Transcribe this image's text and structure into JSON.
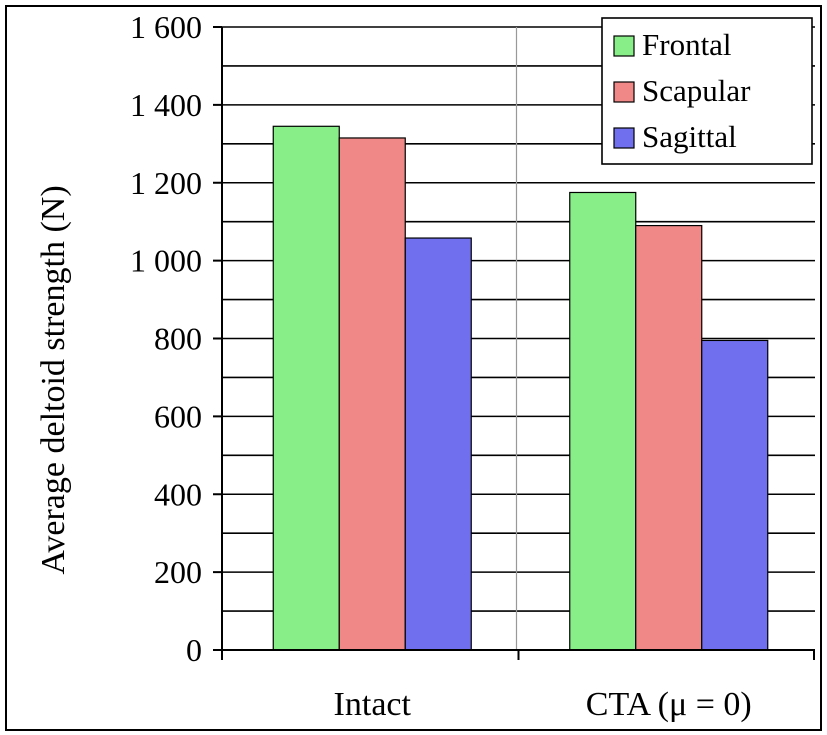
{
  "chart_data": {
    "type": "bar",
    "categories": [
      "Intact",
      "CTA (μ = 0)"
    ],
    "series": [
      {
        "name": "Frontal",
        "color": "#88ee88",
        "values": [
          1345,
          1175
        ]
      },
      {
        "name": "Scapular",
        "color": "#f08888",
        "values": [
          1315,
          1090
        ]
      },
      {
        "name": "Sagittal",
        "color": "#7070ee",
        "values": [
          1058,
          795
        ]
      }
    ],
    "title": "",
    "xlabel": "",
    "ylabel": "Average deltoid strength (N)",
    "ylim": [
      0,
      1600
    ],
    "yticks": [
      0,
      200,
      400,
      600,
      800,
      1000,
      1200,
      1400,
      1600
    ],
    "ytick_labels": [
      "0",
      "200",
      "400",
      "600",
      "800",
      "1 000",
      "1 200",
      "1 400",
      "1 600"
    ],
    "grid": true,
    "legend_position": "top-right"
  }
}
